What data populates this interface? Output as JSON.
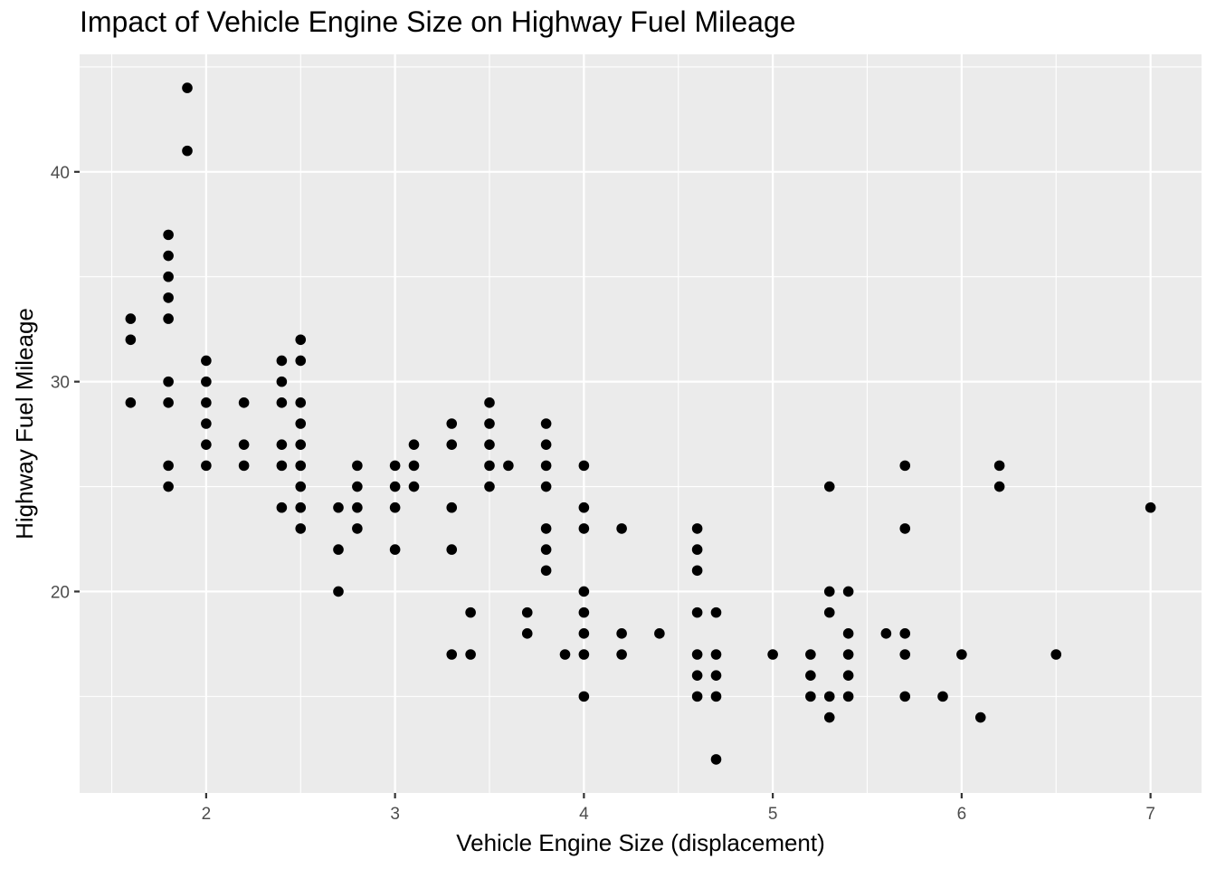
{
  "chart_data": {
    "type": "scatter",
    "title": "Impact of Vehicle Engine Size on Highway Fuel Mileage",
    "xlabel": "Vehicle Engine Size (displacement)",
    "ylabel": "Highway Fuel Mileage",
    "xlim": [
      1.33,
      7.27
    ],
    "ylim": [
      10.4,
      45.6
    ],
    "x_ticks": [
      2,
      3,
      4,
      5,
      6,
      7
    ],
    "y_ticks": [
      20,
      30,
      40
    ],
    "grid": true,
    "legend": "none",
    "colors": {
      "panel_bg": "#ebebeb",
      "grid": "#ffffff",
      "point": "#000000",
      "tick_text": "#4d4d4d"
    },
    "points": [
      [
        1.6,
        33
      ],
      [
        1.6,
        32
      ],
      [
        1.6,
        29
      ],
      [
        1.8,
        37
      ],
      [
        1.8,
        36
      ],
      [
        1.8,
        35
      ],
      [
        1.8,
        34
      ],
      [
        1.8,
        33
      ],
      [
        1.8,
        30
      ],
      [
        1.8,
        29
      ],
      [
        1.8,
        26
      ],
      [
        1.8,
        25
      ],
      [
        1.9,
        44
      ],
      [
        1.9,
        41
      ],
      [
        2.0,
        31
      ],
      [
        2.0,
        30
      ],
      [
        2.0,
        29
      ],
      [
        2.0,
        28
      ],
      [
        2.0,
        27
      ],
      [
        2.0,
        26
      ],
      [
        2.2,
        29
      ],
      [
        2.2,
        27
      ],
      [
        2.2,
        26
      ],
      [
        2.4,
        31
      ],
      [
        2.4,
        30
      ],
      [
        2.4,
        29
      ],
      [
        2.4,
        27
      ],
      [
        2.4,
        26
      ],
      [
        2.4,
        24
      ],
      [
        2.5,
        32
      ],
      [
        2.5,
        31
      ],
      [
        2.5,
        29
      ],
      [
        2.5,
        28
      ],
      [
        2.5,
        27
      ],
      [
        2.5,
        26
      ],
      [
        2.5,
        25
      ],
      [
        2.5,
        24
      ],
      [
        2.5,
        23
      ],
      [
        2.7,
        24
      ],
      [
        2.7,
        22
      ],
      [
        2.7,
        20
      ],
      [
        2.8,
        26
      ],
      [
        2.8,
        25
      ],
      [
        2.8,
        24
      ],
      [
        2.8,
        23
      ],
      [
        3.0,
        26
      ],
      [
        3.0,
        25
      ],
      [
        3.0,
        24
      ],
      [
        3.0,
        22
      ],
      [
        3.1,
        27
      ],
      [
        3.1,
        26
      ],
      [
        3.1,
        25
      ],
      [
        3.3,
        28
      ],
      [
        3.3,
        27
      ],
      [
        3.3,
        24
      ],
      [
        3.3,
        22
      ],
      [
        3.3,
        17
      ],
      [
        3.4,
        19
      ],
      [
        3.4,
        17
      ],
      [
        3.5,
        29
      ],
      [
        3.5,
        28
      ],
      [
        3.5,
        27
      ],
      [
        3.5,
        26
      ],
      [
        3.5,
        25
      ],
      [
        3.6,
        26
      ],
      [
        3.7,
        19
      ],
      [
        3.7,
        18
      ],
      [
        3.8,
        28
      ],
      [
        3.8,
        27
      ],
      [
        3.8,
        26
      ],
      [
        3.8,
        25
      ],
      [
        3.8,
        23
      ],
      [
        3.8,
        22
      ],
      [
        3.8,
        21
      ],
      [
        3.9,
        17
      ],
      [
        4.0,
        26
      ],
      [
        4.0,
        24
      ],
      [
        4.0,
        23
      ],
      [
        4.0,
        20
      ],
      [
        4.0,
        19
      ],
      [
        4.0,
        18
      ],
      [
        4.0,
        17
      ],
      [
        4.0,
        15
      ],
      [
        4.2,
        23
      ],
      [
        4.2,
        18
      ],
      [
        4.2,
        17
      ],
      [
        4.4,
        18
      ],
      [
        4.6,
        23
      ],
      [
        4.6,
        22
      ],
      [
        4.6,
        21
      ],
      [
        4.6,
        19
      ],
      [
        4.6,
        17
      ],
      [
        4.6,
        16
      ],
      [
        4.6,
        15
      ],
      [
        4.7,
        19
      ],
      [
        4.7,
        17
      ],
      [
        4.7,
        16
      ],
      [
        4.7,
        15
      ],
      [
        4.7,
        12
      ],
      [
        5.0,
        17
      ],
      [
        5.2,
        17
      ],
      [
        5.2,
        16
      ],
      [
        5.2,
        15
      ],
      [
        5.3,
        25
      ],
      [
        5.3,
        20
      ],
      [
        5.3,
        19
      ],
      [
        5.3,
        15
      ],
      [
        5.3,
        14
      ],
      [
        5.4,
        20
      ],
      [
        5.4,
        18
      ],
      [
        5.4,
        17
      ],
      [
        5.4,
        16
      ],
      [
        5.4,
        15
      ],
      [
        5.6,
        18
      ],
      [
        5.7,
        26
      ],
      [
        5.7,
        23
      ],
      [
        5.7,
        18
      ],
      [
        5.7,
        17
      ],
      [
        5.7,
        15
      ],
      [
        5.9,
        15
      ],
      [
        6.0,
        17
      ],
      [
        6.1,
        14
      ],
      [
        6.2,
        26
      ],
      [
        6.2,
        25
      ],
      [
        6.5,
        17
      ],
      [
        7.0,
        24
      ]
    ]
  }
}
